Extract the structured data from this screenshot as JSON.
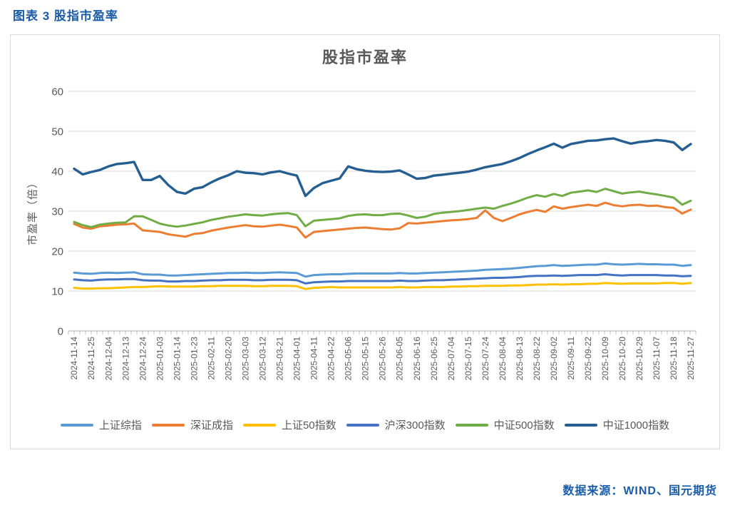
{
  "page": {
    "header_title": "图表 3 股指市盈率",
    "footer_source": "数据来源：WIND、国元期货"
  },
  "colors": {
    "header_blue": "#1A5CA8",
    "footer_blue": "#1A5CA8",
    "title_gray": "#595959",
    "axis_text_gray": "#595959",
    "gridline_gray": "#D9D9D9",
    "axis_line_gray": "#BFBFBF",
    "box_border_gray": "#D9D9D9"
  },
  "chart_data": {
    "type": "line",
    "title": "股指市盈率",
    "xlabel": "",
    "ylabel": "市盈率（倍）",
    "ylim": [
      0,
      60
    ],
    "yticks": [
      0,
      10,
      20,
      30,
      40,
      50,
      60
    ],
    "grid": true,
    "legend_position": "bottom",
    "x_labels": [
      "2024-11-14",
      "2024-11-25",
      "2024-12-04",
      "2024-12-13",
      "2024-12-24",
      "2025-01-03",
      "2025-01-14",
      "2025-01-23",
      "2025-02-11",
      "2025-02-20",
      "2025-03-03",
      "2025-03-12",
      "2025-03-21",
      "2025-04-01",
      "2025-04-11",
      "2025-04-22",
      "2025-05-06",
      "2025-05-15",
      "2025-05-26",
      "2025-06-05",
      "2025-06-16",
      "2025-06-25",
      "2025-07-04",
      "2025-07-15",
      "2025-07-24",
      "2025-08-04",
      "2025-08-13",
      "2025-08-22",
      "2025-09-02",
      "2025-09-11",
      "2025-09-22",
      "2025-10-09",
      "2025-10-20",
      "2025-10-29",
      "2025-11-07",
      "2025-11-18",
      "2025-11-27"
    ],
    "points_per_label_interval": 2,
    "series": [
      {
        "name": "上证综指",
        "color": "#5B9BD5",
        "values": [
          14.6,
          14.4,
          14.3,
          14.5,
          14.6,
          14.5,
          14.6,
          14.7,
          14.2,
          14.1,
          14.1,
          13.9,
          13.9,
          14.0,
          14.1,
          14.2,
          14.3,
          14.4,
          14.5,
          14.5,
          14.6,
          14.5,
          14.5,
          14.6,
          14.7,
          14.6,
          14.5,
          13.6,
          14.0,
          14.1,
          14.2,
          14.2,
          14.3,
          14.4,
          14.4,
          14.4,
          14.4,
          14.4,
          14.5,
          14.4,
          14.4,
          14.5,
          14.6,
          14.7,
          14.8,
          14.9,
          15.0,
          15.1,
          15.3,
          15.4,
          15.5,
          15.6,
          15.8,
          16.0,
          16.2,
          16.3,
          16.5,
          16.3,
          16.4,
          16.5,
          16.6,
          16.6,
          16.9,
          16.7,
          16.6,
          16.7,
          16.8,
          16.7,
          16.7,
          16.6,
          16.6,
          16.3,
          16.5
        ]
      },
      {
        "name": "深证成指",
        "color": "#ED7D31",
        "values": [
          26.8,
          25.9,
          25.6,
          26.2,
          26.4,
          26.6,
          26.7,
          26.9,
          25.2,
          25.0,
          24.8,
          24.2,
          23.9,
          23.6,
          24.3,
          24.5,
          25.1,
          25.5,
          25.9,
          26.2,
          26.5,
          26.2,
          26.1,
          26.4,
          26.6,
          26.3,
          25.9,
          23.4,
          24.8,
          25.0,
          25.2,
          25.4,
          25.6,
          25.8,
          25.9,
          25.7,
          25.5,
          25.4,
          25.7,
          27.0,
          26.9,
          27.1,
          27.3,
          27.5,
          27.7,
          27.8,
          28.0,
          28.3,
          30.2,
          28.3,
          27.5,
          28.3,
          29.2,
          29.8,
          30.3,
          29.8,
          31.2,
          30.6,
          31.0,
          31.3,
          31.6,
          31.3,
          32.1,
          31.5,
          31.2,
          31.5,
          31.6,
          31.3,
          31.4,
          31.0,
          30.8,
          29.4,
          30.4
        ]
      },
      {
        "name": "上证50指数",
        "color": "#FFC000",
        "values": [
          10.8,
          10.6,
          10.6,
          10.7,
          10.7,
          10.8,
          10.9,
          11.0,
          11.0,
          11.1,
          11.2,
          11.1,
          11.1,
          11.1,
          11.1,
          11.2,
          11.2,
          11.3,
          11.3,
          11.3,
          11.3,
          11.2,
          11.2,
          11.3,
          11.3,
          11.3,
          11.2,
          10.5,
          10.8,
          10.9,
          11.0,
          10.9,
          10.9,
          10.9,
          10.9,
          10.9,
          10.9,
          10.9,
          11.0,
          10.9,
          10.9,
          11.0,
          11.0,
          11.0,
          11.1,
          11.1,
          11.2,
          11.2,
          11.3,
          11.3,
          11.3,
          11.4,
          11.4,
          11.5,
          11.6,
          11.6,
          11.7,
          11.6,
          11.7,
          11.7,
          11.8,
          11.8,
          12.0,
          11.9,
          11.8,
          11.9,
          11.9,
          11.9,
          11.9,
          12.0,
          12.0,
          11.8,
          12.0
        ]
      },
      {
        "name": "沪深300指数",
        "color": "#4472C4",
        "values": [
          12.9,
          12.7,
          12.6,
          12.8,
          12.9,
          12.9,
          13.0,
          13.0,
          12.7,
          12.6,
          12.6,
          12.4,
          12.4,
          12.5,
          12.5,
          12.6,
          12.7,
          12.7,
          12.8,
          12.8,
          12.8,
          12.7,
          12.7,
          12.8,
          12.8,
          12.8,
          12.7,
          11.9,
          12.2,
          12.3,
          12.4,
          12.4,
          12.5,
          12.5,
          12.5,
          12.5,
          12.5,
          12.5,
          12.6,
          12.5,
          12.5,
          12.6,
          12.7,
          12.7,
          12.8,
          12.9,
          13.0,
          13.1,
          13.2,
          13.3,
          13.3,
          13.4,
          13.5,
          13.7,
          13.8,
          13.8,
          13.9,
          13.8,
          13.9,
          14.0,
          14.0,
          14.0,
          14.2,
          14.0,
          13.9,
          14.0,
          14.0,
          14.0,
          14.0,
          13.9,
          13.9,
          13.7,
          13.8
        ]
      },
      {
        "name": "中证500指数",
        "color": "#70AD47",
        "values": [
          27.3,
          26.5,
          26.0,
          26.6,
          26.9,
          27.1,
          27.2,
          28.7,
          28.7,
          27.8,
          26.9,
          26.4,
          26.1,
          26.4,
          26.8,
          27.2,
          27.8,
          28.2,
          28.6,
          28.9,
          29.2,
          29.0,
          28.9,
          29.2,
          29.4,
          29.5,
          29.0,
          26.2,
          27.6,
          27.8,
          28.0,
          28.2,
          28.8,
          29.1,
          29.2,
          29.0,
          29.0,
          29.3,
          29.4,
          28.9,
          28.3,
          28.6,
          29.3,
          29.6,
          29.8,
          30.0,
          30.3,
          30.6,
          30.9,
          30.6,
          31.3,
          31.9,
          32.6,
          33.4,
          34.0,
          33.6,
          34.3,
          33.8,
          34.6,
          34.9,
          35.2,
          34.8,
          35.6,
          35.0,
          34.4,
          34.7,
          34.9,
          34.5,
          34.2,
          33.8,
          33.4,
          31.6,
          32.6
        ]
      },
      {
        "name": "中证1000指数",
        "color": "#255E91",
        "values": [
          40.6,
          39.2,
          39.8,
          40.3,
          41.2,
          41.8,
          42.0,
          42.3,
          37.8,
          37.8,
          38.8,
          36.5,
          34.8,
          34.4,
          35.6,
          36.0,
          37.2,
          38.2,
          39.0,
          40.0,
          39.6,
          39.5,
          39.2,
          39.7,
          40.0,
          39.4,
          38.9,
          33.8,
          35.8,
          37.0,
          37.6,
          38.2,
          41.2,
          40.5,
          40.1,
          39.9,
          39.8,
          39.9,
          40.2,
          39.2,
          38.1,
          38.3,
          38.9,
          39.1,
          39.4,
          39.6,
          39.9,
          40.4,
          41.0,
          41.4,
          41.8,
          42.5,
          43.3,
          44.3,
          45.2,
          46.0,
          46.9,
          45.9,
          46.8,
          47.2,
          47.6,
          47.7,
          48.0,
          48.2,
          47.5,
          46.9,
          47.3,
          47.5,
          47.8,
          47.6,
          47.2,
          45.3,
          46.8
        ]
      }
    ]
  }
}
